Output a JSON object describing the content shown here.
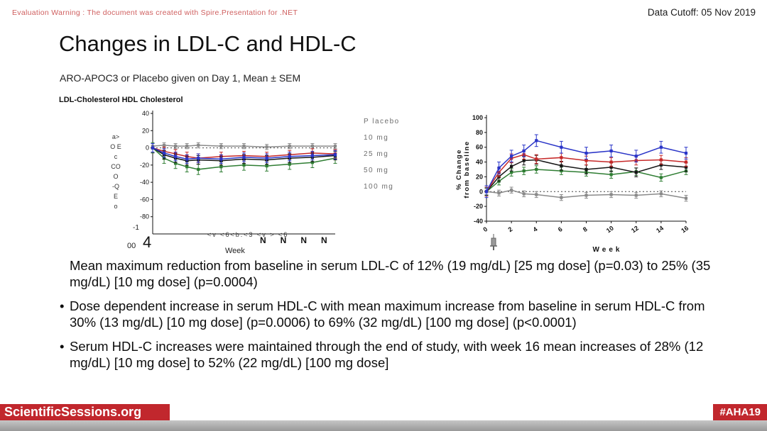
{
  "header": {
    "eval_warning": "Evaluation Warning : The document was created with Spire.Presentation for .NET",
    "data_cutoff": "Data Cutoff: 05 Nov 2019"
  },
  "slide": {
    "title": "Changes in LDL-C and HDL-C",
    "subtitle": "ARO-APOC3 or Placebo given on Day 1, Mean ± SEM",
    "left_chart_caption": "LDL-Cholesterol  HDL Cholesterol"
  },
  "left_chart_garble": {
    "y_axis": "a>\nO E\nc\nCO\nO\n-Q\nE\no",
    "neg1": "-1",
    "zerozero": "00",
    "big4": "4",
    "x_ticks": "<v <6<b.<3 <v >  <6",
    "week_label": "Week",
    "n_row": "NNNN"
  },
  "legend": {
    "items": [
      {
        "label": "P lacebo"
      },
      {
        "label": "10 mg"
      },
      {
        "label": "25 mg"
      },
      {
        "label": "50 mg"
      },
      {
        "label": "100 mg"
      }
    ]
  },
  "bullets": [
    {
      "marker": "",
      "text": "Mean maximum reduction from baseline in serum LDL-C of 12% (19 mg/dL) [25 mg dose] (p=0.03) to 25% (35 mg/dL) [10 mg dose] (p=0.0004)"
    },
    {
      "marker": "•",
      "text": "Dose dependent increase in serum HDL-C with mean maximum increase from baseline in serum HDL-C from 30% (13 mg/dL) [10 mg dose] (p=0.0006) to 69% (32 mg/dL) [100 mg dose] (p<0.0001)"
    },
    {
      "marker": "•",
      "text": "Serum HDL-C increases were maintained through the end of study, with week 16 mean increases of 28% (12 mg/dL) [10 mg dose] to 52% (22 mg/dL) [100 mg dose]"
    }
  ],
  "footer": {
    "left": "ScientificSessions.org",
    "right": "#AHA19",
    "accent_color": "#c1272d"
  },
  "chart_data": [
    {
      "id": "ldl-hdl-cholesterol-change",
      "type": "line",
      "title": "LDL-Cholesterol  HDL Cholesterol",
      "xlabel": "Week",
      "ylabel": "% Change from baseline",
      "x": [
        0,
        1,
        2,
        3,
        4,
        6,
        8,
        10,
        12,
        14,
        16
      ],
      "ylim": [
        -100,
        40
      ],
      "yticks": [
        40,
        20,
        0,
        -20,
        -40,
        -60,
        -80
      ],
      "zero_line_dotted": true,
      "bold_ticks": false,
      "xlabel_visible": false,
      "series": [
        {
          "name": "Placebo",
          "color": "#8a8a8a",
          "err": 3,
          "values": [
            2,
            3,
            2,
            2,
            3,
            2,
            2,
            1,
            2,
            2,
            2
          ]
        },
        {
          "name": "10 mg",
          "color": "#2e7d32",
          "err": 6,
          "values": [
            0,
            -12,
            -18,
            -22,
            -25,
            -22,
            -20,
            -21,
            -19,
            -17,
            -12
          ]
        },
        {
          "name": "25 mg",
          "color": "#c62828",
          "err": 5,
          "values": [
            0,
            -4,
            -7,
            -10,
            -12,
            -10,
            -9,
            -10,
            -8,
            -6,
            -7
          ]
        },
        {
          "name": "50 mg",
          "color": "#151515",
          "err": 5,
          "values": [
            0,
            -8,
            -12,
            -15,
            -14,
            -15,
            -13,
            -14,
            -12,
            -11,
            -9
          ]
        },
        {
          "name": "100 mg",
          "color": "#2a35c8",
          "err": 5,
          "values": [
            0,
            -6,
            -10,
            -13,
            -12,
            -13,
            -11,
            -12,
            -10,
            -9,
            -8
          ]
        }
      ]
    },
    {
      "id": "hdl-c-percent-change",
      "type": "line",
      "title": "",
      "xlabel": "Week",
      "ylabel": "% Change from baseline",
      "ylabel_lines": [
        "% Change",
        "from baseline"
      ],
      "x": [
        0,
        1,
        2,
        3,
        4,
        6,
        8,
        10,
        12,
        14,
        16
      ],
      "xticks": [
        0,
        2,
        4,
        6,
        8,
        10,
        12,
        14,
        16
      ],
      "ylim": [
        -40,
        100
      ],
      "yticks": [
        100,
        80,
        60,
        40,
        20,
        0,
        -20,
        -40
      ],
      "zero_line_dotted": true,
      "bold_ticks": true,
      "xlabel_visible": true,
      "series": [
        {
          "name": "Placebo",
          "color": "#8a8a8a",
          "err": 4,
          "values": [
            0,
            -2,
            2,
            -3,
            -4,
            -8,
            -5,
            -4,
            -5,
            -3,
            -9
          ]
        },
        {
          "name": "10 mg",
          "color": "#2e7d32",
          "err": 5,
          "values": [
            0,
            14,
            26,
            28,
            30,
            28,
            26,
            23,
            27,
            19,
            28
          ]
        },
        {
          "name": "25 mg",
          "color": "#151515",
          "err": 6,
          "values": [
            0,
            20,
            34,
            42,
            43,
            35,
            30,
            33,
            26,
            36,
            33
          ]
        },
        {
          "name": "50 mg",
          "color": "#c62828",
          "err": 6,
          "values": [
            0,
            26,
            45,
            50,
            44,
            46,
            42,
            40,
            42,
            43,
            40
          ]
        },
        {
          "name": "100 mg",
          "color": "#2a35c8",
          "err": 8,
          "values": [
            0,
            32,
            48,
            55,
            69,
            60,
            52,
            55,
            48,
            60,
            52
          ]
        }
      ]
    }
  ]
}
